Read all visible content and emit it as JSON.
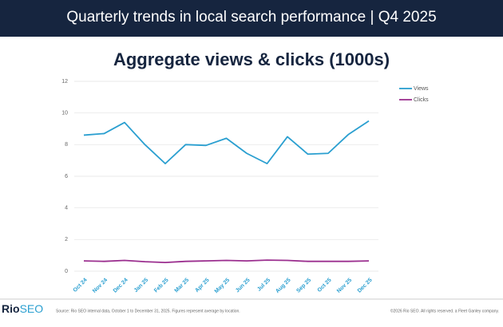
{
  "header": {
    "title": "Quarterly trends in local search performance  |  Q4 2025"
  },
  "chart_data": {
    "type": "line",
    "title": "Aggregate views & clicks (1000s)",
    "categories": [
      "Oct 24",
      "Nov 24",
      "Dec 24",
      "Jan 25",
      "Feb 25",
      "Mar 25",
      "Apr 25",
      "May 25",
      "Jun 25",
      "Jul 25",
      "Aug 25",
      "Sep 25",
      "Oct 25",
      "Nov 25",
      "Dec 25"
    ],
    "series": [
      {
        "name": "Views",
        "color": "#2a9fd0",
        "values": [
          8.6,
          8.7,
          9.4,
          8.0,
          6.8,
          8.0,
          7.95,
          8.4,
          7.45,
          6.8,
          8.5,
          7.4,
          7.45,
          8.65,
          9.5
        ]
      },
      {
        "name": "Clicks",
        "color": "#9b2f8f",
        "values": [
          0.65,
          0.62,
          0.68,
          0.6,
          0.55,
          0.62,
          0.65,
          0.68,
          0.65,
          0.7,
          0.68,
          0.62,
          0.62,
          0.62,
          0.65
        ]
      }
    ],
    "ylim": [
      0,
      12
    ],
    "yticks": [
      0,
      2,
      4,
      6,
      8,
      10,
      12
    ],
    "grid": true,
    "legend": "right"
  },
  "footer": {
    "logo": [
      "Rio",
      "SEO"
    ],
    "source": "Source: Rio SEO internal data, October 1 to December 31, 2025. Figures represent average by location.",
    "copyright": "©2026 Rio SEO. All rights reserved. a Fleet Ganley company."
  }
}
